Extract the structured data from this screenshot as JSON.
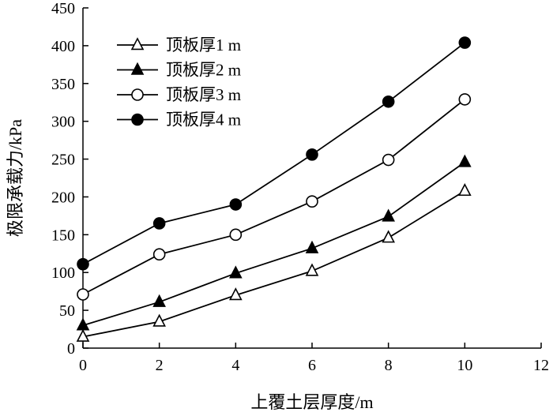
{
  "chart_data": {
    "type": "line",
    "xlabel": "上覆土层厚度/m",
    "ylabel": "极限承载力/kPa",
    "xlim": [
      0,
      12
    ],
    "ylim": [
      0,
      450
    ],
    "xticks": [
      0,
      2,
      4,
      6,
      8,
      10,
      12
    ],
    "yticks": [
      0,
      50,
      100,
      150,
      200,
      250,
      300,
      350,
      400,
      450
    ],
    "grid": false,
    "legend_position": "top-left",
    "x": [
      0,
      2,
      4,
      6,
      8,
      10
    ],
    "series": [
      {
        "name": "顶板厚1 m",
        "marker": "triangle-open",
        "values": [
          15,
          35,
          70,
          102,
          146,
          208
        ]
      },
      {
        "name": "顶板厚2 m",
        "marker": "triangle-filled",
        "values": [
          30,
          61,
          99,
          132,
          174,
          246
        ]
      },
      {
        "name": "顶板厚3 m",
        "marker": "circle-open",
        "values": [
          71,
          124,
          150,
          194,
          249,
          329
        ]
      },
      {
        "name": "顶板厚4 m",
        "marker": "circle-filled",
        "values": [
          111,
          165,
          190,
          256,
          326,
          404
        ]
      }
    ]
  }
}
